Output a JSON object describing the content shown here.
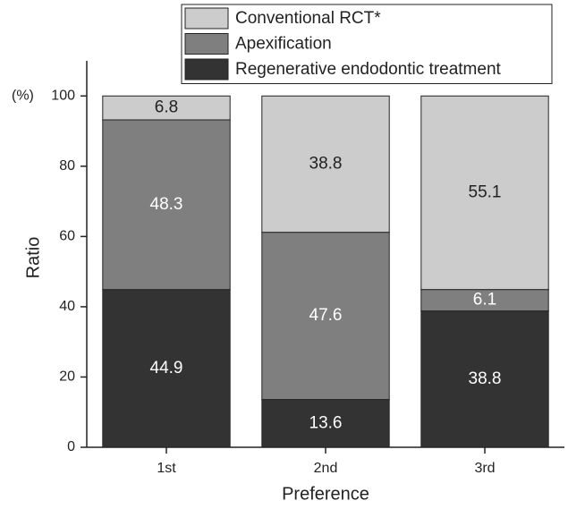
{
  "chart_data": {
    "type": "stacked_bar",
    "xlabel": "Preference",
    "ylabel": "Ratio",
    "y_unit": "(%)",
    "categories": [
      "1st",
      "2nd",
      "3rd"
    ],
    "series": [
      {
        "name": "Regenerative endodontic treatment",
        "color": "#333333",
        "values": [
          44.9,
          13.6,
          38.8
        ]
      },
      {
        "name": "Apexification",
        "color": "#7f7f7f",
        "values": [
          48.3,
          47.6,
          6.1
        ]
      },
      {
        "name": "Conventional RCT*",
        "color": "#cccccc",
        "values": [
          6.8,
          38.8,
          55.1
        ]
      }
    ],
    "ylim": [
      0,
      110
    ],
    "yticks": [
      0,
      20,
      40,
      60,
      80,
      100
    ],
    "legend": "top-right"
  }
}
